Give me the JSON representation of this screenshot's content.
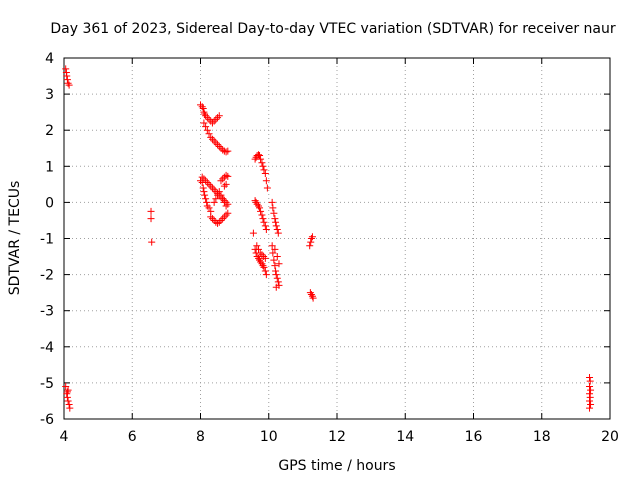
{
  "chart_data": {
    "type": "scatter",
    "title": "Day 361 of 2023, Sidereal Day-to-day VTEC variation (SDTVAR) for receiver naur",
    "xlabel": "GPS time / hours",
    "ylabel": "SDTVAR / TECUs",
    "xlim": [
      4,
      20
    ],
    "ylim": [
      -6,
      4
    ],
    "xticks": [
      4,
      6,
      8,
      10,
      12,
      14,
      16,
      18,
      20
    ],
    "yticks": [
      -6,
      -5,
      -4,
      -3,
      -2,
      -1,
      0,
      1,
      2,
      3,
      4
    ],
    "grid": true,
    "legend": "none",
    "marker": "+",
    "colors": {
      "points": "#ff0000",
      "grid": "#a0a0a0",
      "axes": "#000000"
    },
    "series": [
      {
        "name": "SDTVAR",
        "points": [
          [
            4.05,
            3.7
          ],
          [
            4.07,
            3.6
          ],
          [
            4.08,
            3.5
          ],
          [
            4.1,
            3.4
          ],
          [
            4.12,
            3.3
          ],
          [
            4.15,
            3.25
          ],
          [
            4.05,
            -5.1
          ],
          [
            4.08,
            -5.3
          ],
          [
            4.1,
            -5.4
          ],
          [
            4.12,
            -5.5
          ],
          [
            4.15,
            -5.6
          ],
          [
            4.17,
            -5.7
          ],
          [
            4.1,
            -5.25
          ],
          [
            4.12,
            -5.2
          ],
          [
            6.55,
            -0.25
          ],
          [
            6.55,
            -0.45
          ],
          [
            6.57,
            -1.1
          ],
          [
            8.0,
            2.7
          ],
          [
            8.05,
            2.65
          ],
          [
            8.08,
            2.6
          ],
          [
            8.1,
            2.5
          ],
          [
            8.12,
            2.45
          ],
          [
            8.15,
            2.4
          ],
          [
            8.2,
            2.35
          ],
          [
            8.25,
            2.3
          ],
          [
            8.3,
            2.25
          ],
          [
            8.35,
            2.2
          ],
          [
            8.4,
            2.25
          ],
          [
            8.45,
            2.3
          ],
          [
            8.5,
            2.35
          ],
          [
            8.55,
            2.4
          ],
          [
            8.1,
            2.2
          ],
          [
            8.15,
            2.1
          ],
          [
            8.2,
            2.0
          ],
          [
            8.25,
            1.9
          ],
          [
            8.3,
            1.8
          ],
          [
            8.35,
            1.75
          ],
          [
            8.4,
            1.7
          ],
          [
            8.45,
            1.65
          ],
          [
            8.5,
            1.6
          ],
          [
            8.55,
            1.55
          ],
          [
            8.6,
            1.5
          ],
          [
            8.65,
            1.45
          ],
          [
            8.7,
            1.42
          ],
          [
            8.75,
            1.4
          ],
          [
            8.8,
            1.42
          ],
          [
            8.0,
            0.6
          ],
          [
            8.05,
            0.55
          ],
          [
            8.08,
            0.4
          ],
          [
            8.1,
            0.3
          ],
          [
            8.12,
            0.2
          ],
          [
            8.15,
            0.1
          ],
          [
            8.18,
            0.0
          ],
          [
            8.2,
            -0.1
          ],
          [
            8.25,
            -0.15
          ],
          [
            8.3,
            -0.25
          ],
          [
            8.05,
            0.7
          ],
          [
            8.1,
            0.65
          ],
          [
            8.15,
            0.6
          ],
          [
            8.2,
            0.55
          ],
          [
            8.25,
            0.5
          ],
          [
            8.3,
            0.45
          ],
          [
            8.35,
            0.4
          ],
          [
            8.4,
            0.35
          ],
          [
            8.45,
            0.3
          ],
          [
            8.5,
            0.25
          ],
          [
            8.55,
            0.2
          ],
          [
            8.6,
            0.15
          ],
          [
            8.65,
            0.1
          ],
          [
            8.7,
            0.05
          ],
          [
            8.75,
            0.0
          ],
          [
            8.8,
            -0.05
          ],
          [
            8.3,
            -0.4
          ],
          [
            8.35,
            -0.45
          ],
          [
            8.4,
            -0.5
          ],
          [
            8.45,
            -0.55
          ],
          [
            8.5,
            -0.58
          ],
          [
            8.55,
            -0.55
          ],
          [
            8.6,
            -0.5
          ],
          [
            8.65,
            -0.45
          ],
          [
            8.7,
            -0.4
          ],
          [
            8.75,
            -0.35
          ],
          [
            8.8,
            -0.3
          ],
          [
            8.4,
            0.0
          ],
          [
            8.45,
            0.1
          ],
          [
            8.5,
            0.2
          ],
          [
            8.55,
            0.3
          ],
          [
            8.6,
            0.2
          ],
          [
            8.65,
            0.1
          ],
          [
            8.7,
            0.0
          ],
          [
            8.75,
            -0.1
          ],
          [
            8.6,
            0.6
          ],
          [
            8.65,
            0.65
          ],
          [
            8.7,
            0.7
          ],
          [
            8.75,
            0.75
          ],
          [
            8.8,
            0.72
          ],
          [
            8.7,
            0.45
          ],
          [
            8.75,
            0.5
          ],
          [
            9.6,
            1.2
          ],
          [
            9.63,
            1.25
          ],
          [
            9.66,
            1.3
          ],
          [
            9.7,
            1.32
          ],
          [
            9.73,
            1.3
          ],
          [
            9.76,
            1.2
          ],
          [
            9.8,
            1.1
          ],
          [
            9.83,
            1.0
          ],
          [
            9.86,
            0.9
          ],
          [
            9.9,
            0.8
          ],
          [
            9.93,
            0.6
          ],
          [
            9.96,
            0.4
          ],
          [
            9.6,
            0.05
          ],
          [
            9.63,
            0.0
          ],
          [
            9.66,
            -0.05
          ],
          [
            9.7,
            -0.1
          ],
          [
            9.73,
            -0.15
          ],
          [
            9.76,
            -0.25
          ],
          [
            9.8,
            -0.35
          ],
          [
            9.83,
            -0.45
          ],
          [
            9.86,
            -0.55
          ],
          [
            9.9,
            -0.65
          ],
          [
            9.93,
            -0.75
          ],
          [
            9.55,
            -0.85
          ],
          [
            9.6,
            -1.3
          ],
          [
            9.63,
            -1.4
          ],
          [
            9.66,
            -1.5
          ],
          [
            9.7,
            -1.55
          ],
          [
            9.73,
            -1.6
          ],
          [
            9.76,
            -1.65
          ],
          [
            9.8,
            -1.7
          ],
          [
            9.83,
            -1.75
          ],
          [
            9.86,
            -1.8
          ],
          [
            9.9,
            -1.9
          ],
          [
            9.93,
            -2.0
          ],
          [
            9.65,
            -1.2
          ],
          [
            9.7,
            -1.3
          ],
          [
            9.75,
            -1.4
          ],
          [
            9.8,
            -1.45
          ],
          [
            9.85,
            -1.5
          ],
          [
            9.9,
            -1.55
          ],
          [
            10.1,
            0.0
          ],
          [
            10.12,
            -0.15
          ],
          [
            10.15,
            -0.3
          ],
          [
            10.18,
            -0.45
          ],
          [
            10.2,
            -0.55
          ],
          [
            10.22,
            -0.65
          ],
          [
            10.25,
            -0.75
          ],
          [
            10.28,
            -0.85
          ],
          [
            10.1,
            -1.2
          ],
          [
            10.12,
            -1.4
          ],
          [
            10.15,
            -1.6
          ],
          [
            10.18,
            -1.75
          ],
          [
            10.2,
            -1.9
          ],
          [
            10.22,
            -2.0
          ],
          [
            10.25,
            -2.1
          ],
          [
            10.28,
            -2.2
          ],
          [
            10.3,
            -2.3
          ],
          [
            10.22,
            -2.35
          ],
          [
            10.18,
            -1.3
          ],
          [
            10.25,
            -1.5
          ],
          [
            10.3,
            -1.7
          ],
          [
            11.2,
            -1.2
          ],
          [
            11.23,
            -1.1
          ],
          [
            11.25,
            -1.0
          ],
          [
            11.28,
            -0.95
          ],
          [
            11.22,
            -2.5
          ],
          [
            11.25,
            -2.55
          ],
          [
            11.28,
            -2.6
          ],
          [
            11.3,
            -2.65
          ],
          [
            19.4,
            -4.85
          ],
          [
            19.42,
            -4.95
          ],
          [
            19.4,
            -5.1
          ],
          [
            19.43,
            -5.2
          ],
          [
            19.4,
            -5.3
          ],
          [
            19.42,
            -5.4
          ],
          [
            19.4,
            -5.5
          ],
          [
            19.43,
            -5.6
          ],
          [
            19.4,
            -5.7
          ]
        ]
      }
    ]
  }
}
